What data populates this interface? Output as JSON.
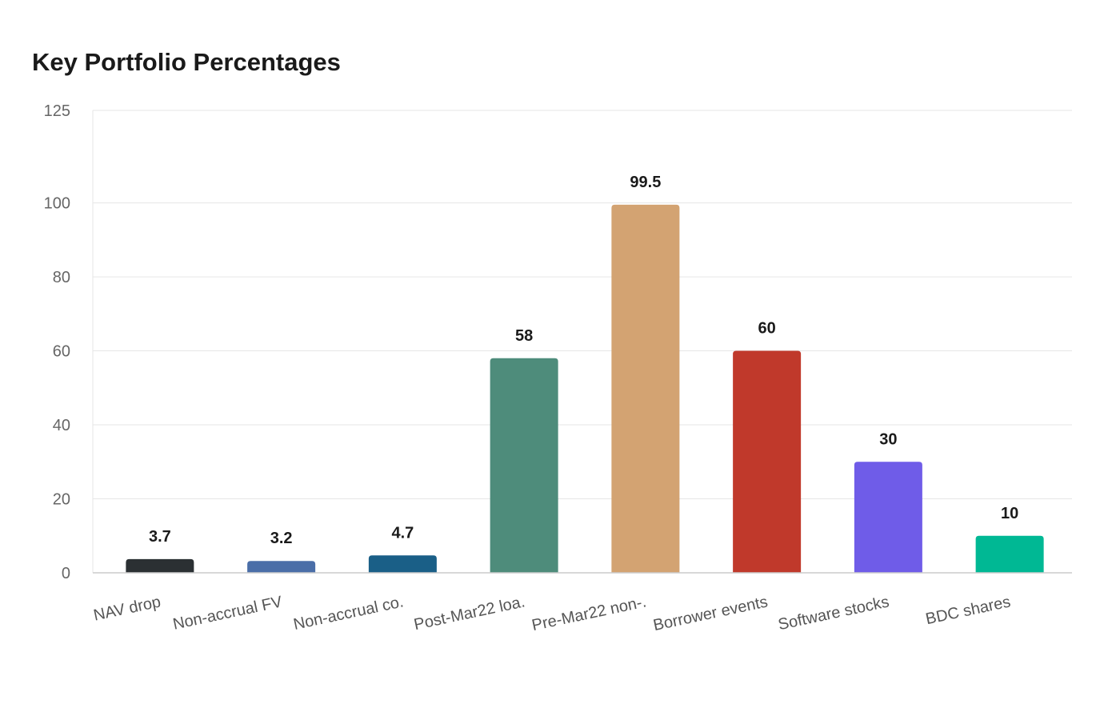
{
  "chart_data": {
    "type": "bar",
    "title": "Key Portfolio Percentages",
    "xlabel": "",
    "ylabel": "",
    "categories": [
      "NAV drop",
      "Non-accrual FV",
      "Non-accrual co.",
      "Post-Mar22 loa.",
      "Pre-Mar22 non-.",
      "Borrower events",
      "Software stocks",
      "BDC shares"
    ],
    "values": [
      3.7,
      3.2,
      4.7,
      58,
      99.5,
      60,
      30,
      10
    ],
    "data_labels": [
      "3.7",
      "3.2",
      "4.7",
      "58",
      "99.5",
      "60",
      "30",
      "10"
    ],
    "colors": [
      "#2b3033",
      "#4a6ea8",
      "#1a5f87",
      "#4e8c7b",
      "#d3a372",
      "#c0392b",
      "#6f5ce8",
      "#00b894"
    ],
    "ylim": [
      0,
      125
    ],
    "yticks": [
      0,
      20,
      40,
      60,
      80,
      100,
      125
    ],
    "ytick_labels": [
      "0",
      "20",
      "40",
      "60",
      "80",
      "100",
      "125"
    ],
    "grid": true,
    "legend": "none"
  }
}
